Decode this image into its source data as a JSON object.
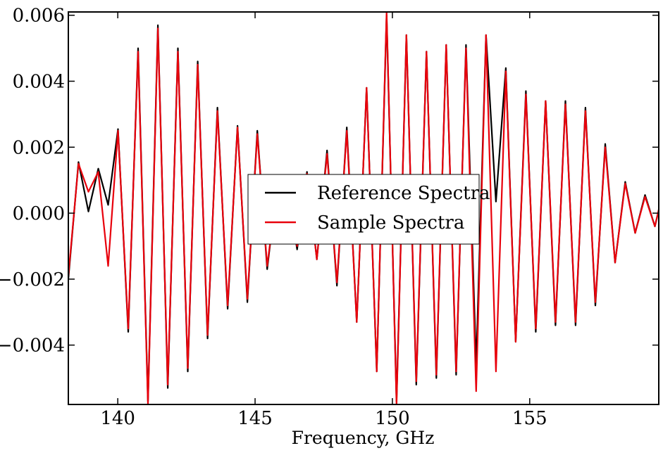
{
  "chart_data": {
    "type": "line",
    "title": "",
    "xlabel": "Frequency, GHz",
    "ylabel": "",
    "xlim": [
      138.2,
      159.7
    ],
    "ylim": [
      -0.0058,
      0.0061
    ],
    "xticks": [
      140,
      145,
      150,
      155
    ],
    "xtick_labels": [
      "140",
      "145",
      "150",
      "155"
    ],
    "yticks": [
      -0.004,
      -0.002,
      0.0,
      0.002,
      0.004,
      0.006
    ],
    "ytick_labels": [
      "−0.004",
      "−0.002",
      "0.000",
      "0.002",
      "0.004",
      "0.006"
    ],
    "grid": false,
    "legend_position": "center",
    "series": [
      {
        "name": "Reference Spectra",
        "color": "#000000",
        "x": [
          138.2,
          138.57,
          138.93,
          139.29,
          139.65,
          140.01,
          140.38,
          140.74,
          141.1,
          141.46,
          141.82,
          142.19,
          142.55,
          142.91,
          143.27,
          143.63,
          144.0,
          144.36,
          144.72,
          145.08,
          145.44,
          145.81,
          146.17,
          146.53,
          146.89,
          147.25,
          147.62,
          147.98,
          148.34,
          148.7,
          149.06,
          149.43,
          149.79,
          150.15,
          150.51,
          150.87,
          151.24,
          151.6,
          151.96,
          152.32,
          152.68,
          153.05,
          153.41,
          153.77,
          154.13,
          154.49,
          154.86,
          155.22,
          155.58,
          155.94,
          156.3,
          156.67,
          157.03,
          157.39,
          157.75,
          158.11,
          158.48,
          158.84,
          159.2,
          159.56,
          159.7
        ],
        "values": [
          -0.002,
          0.00155,
          5e-05,
          0.00135,
          0.00025,
          0.00255,
          -0.0036,
          0.005,
          -0.0057,
          0.0057,
          -0.0053,
          0.005,
          -0.0048,
          0.0046,
          -0.0038,
          0.0032,
          -0.0029,
          0.00265,
          -0.0027,
          0.0025,
          -0.0017,
          0.0009,
          0.0009,
          -0.0011,
          0.00125,
          -0.0014,
          0.0019,
          -0.0022,
          0.0026,
          -0.0033,
          0.0038,
          -0.0048,
          0.006,
          -0.0057,
          0.0054,
          -0.0052,
          0.0049,
          -0.005,
          0.0051,
          -0.0049,
          0.0051,
          -0.0046,
          0.0054,
          0.00035,
          0.0044,
          -0.0039,
          0.0037,
          -0.0036,
          0.0034,
          -0.0034,
          0.0034,
          -0.0034,
          0.0032,
          -0.0028,
          0.0021,
          -0.0015,
          0.00095,
          -0.0006,
          0.00055,
          -0.0004,
          0.0001
        ]
      },
      {
        "name": "Sample Spectra",
        "color": "#e8000b",
        "x": [
          138.2,
          138.57,
          138.93,
          139.29,
          139.65,
          140.01,
          140.38,
          140.74,
          141.1,
          141.46,
          141.82,
          142.19,
          142.55,
          142.91,
          143.27,
          143.63,
          144.0,
          144.36,
          144.72,
          145.08,
          145.44,
          145.81,
          146.17,
          146.53,
          146.89,
          147.25,
          147.62,
          147.98,
          148.34,
          148.7,
          149.06,
          149.43,
          149.79,
          150.15,
          150.51,
          150.87,
          151.24,
          151.6,
          151.96,
          152.32,
          152.68,
          153.05,
          153.41,
          153.77,
          154.13,
          154.49,
          154.86,
          155.22,
          155.58,
          155.94,
          156.3,
          156.67,
          157.03,
          157.39,
          157.75,
          158.11,
          158.48,
          158.84,
          159.2,
          159.56,
          159.7
        ],
        "values": [
          -0.0019,
          0.0015,
          0.00065,
          0.00125,
          -0.0016,
          0.0025,
          -0.0035,
          0.0049,
          -0.0058,
          0.0056,
          -0.0052,
          0.0049,
          -0.0047,
          0.0045,
          -0.0037,
          0.0031,
          -0.0028,
          0.0026,
          -0.0026,
          0.0024,
          -0.0016,
          0.0008,
          0.0008,
          -0.001,
          0.0012,
          -0.0014,
          0.0018,
          -0.0021,
          0.0025,
          -0.0033,
          0.0038,
          -0.0048,
          0.0061,
          -0.0058,
          0.0054,
          -0.0051,
          0.0049,
          -0.0049,
          0.0051,
          -0.0048,
          0.005,
          -0.0054,
          0.0054,
          -0.0048,
          0.0043,
          -0.0039,
          0.0036,
          -0.0035,
          0.0034,
          -0.0033,
          0.0033,
          -0.0033,
          0.0031,
          -0.0027,
          0.002,
          -0.0015,
          0.0009,
          -0.0006,
          0.0005,
          -0.0004,
          0.0001
        ]
      }
    ]
  }
}
